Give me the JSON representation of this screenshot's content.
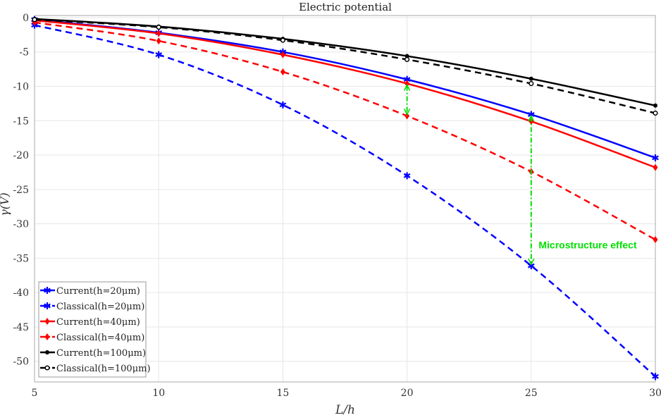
{
  "chart_data": {
    "type": "line",
    "title": "Electric potential",
    "xlabel": "L/h",
    "ylabel": "γ(V)",
    "xlim": [
      5,
      30
    ],
    "ylim": [
      -53,
      0
    ],
    "x": [
      5,
      10,
      15,
      20,
      25,
      30
    ],
    "xticks": [
      "5",
      "10",
      "15",
      "20",
      "25",
      "30"
    ],
    "yticks": [
      "0",
      "-5",
      "-10",
      "-15",
      "-20",
      "-25",
      "-30",
      "-35",
      "-40",
      "-45",
      "-50"
    ],
    "grid": true,
    "legend_position": "bottom-left",
    "series": [
      {
        "name": "Current(h=20μm)",
        "color": "#0000ff",
        "dash": false,
        "marker": "star",
        "values": [
          -0.3,
          -2.2,
          -5.0,
          -9.0,
          -14.1,
          -20.4
        ]
      },
      {
        "name": "Classical(h=20μm)",
        "color": "#0000ff",
        "dash": true,
        "marker": "star",
        "values": [
          -1.1,
          -5.4,
          -12.7,
          -23.0,
          -36.1,
          -52.2
        ]
      },
      {
        "name": "Current(h=40μm)",
        "color": "#ff0000",
        "dash": false,
        "marker": "diamond",
        "values": [
          -0.4,
          -2.3,
          -5.4,
          -9.6,
          -15.1,
          -21.8
        ]
      },
      {
        "name": "Classical(h=40μm)",
        "color": "#ff0000",
        "dash": true,
        "marker": "diamond",
        "values": [
          -0.7,
          -3.4,
          -7.9,
          -14.3,
          -22.4,
          -32.3
        ]
      },
      {
        "name": "Current(h=100μm)",
        "color": "#000000",
        "dash": false,
        "marker": "circle",
        "values": [
          -0.2,
          -1.3,
          -3.1,
          -5.6,
          -8.9,
          -12.8
        ]
      },
      {
        "name": "Classical(h=100μm)",
        "color": "#000000",
        "dash": true,
        "marker": "open-circle",
        "values": [
          -0.3,
          -1.4,
          -3.3,
          -6.1,
          -9.6,
          -13.9
        ]
      }
    ],
    "annotations": [
      {
        "text": "Microstructure effect",
        "color": "#00e000",
        "x": 25.3,
        "y": -33.6
      },
      {
        "type": "double-arrow",
        "x": 20,
        "from": -9.6,
        "to": -14.3
      },
      {
        "type": "double-arrow",
        "x": 25,
        "from": -14.1,
        "to": -36.1
      }
    ]
  }
}
